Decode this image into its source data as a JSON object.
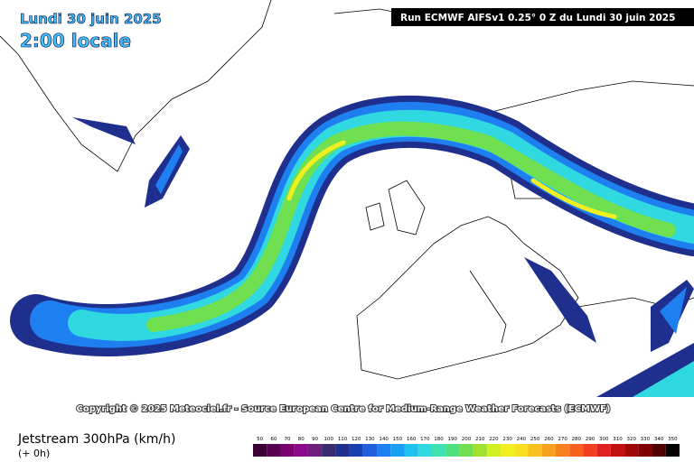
{
  "header": {
    "date": "Lundi 30 juin 2025",
    "time": "2:00 locale",
    "run": "Run ECMWF AIFSv1 0.25° 0 Z du Lundi 30 juin 2025"
  },
  "copyright": "Copyright © 2025 Meteociel.fr - Source European Centre for Medium-Range Weather Forecasts (ECMWF)",
  "legend": {
    "title": "Jetstream 300hPa (km/h)",
    "offset": "(+ 0h)",
    "colorbar": [
      {
        "label": 50,
        "color": "#3b0033"
      },
      {
        "label": 60,
        "color": "#5a0050"
      },
      {
        "label": 70,
        "color": "#7a006e"
      },
      {
        "label": 80,
        "color": "#8a0a8a"
      },
      {
        "label": 90,
        "color": "#6e1f7e"
      },
      {
        "label": 100,
        "color": "#3a2a6e"
      },
      {
        "label": 110,
        "color": "#1f2f8e"
      },
      {
        "label": 120,
        "color": "#1a3fae"
      },
      {
        "label": 130,
        "color": "#1f5fdc"
      },
      {
        "label": 140,
        "color": "#1e7ff0"
      },
      {
        "label": 150,
        "color": "#1aa0f5"
      },
      {
        "label": 160,
        "color": "#20c0f0"
      },
      {
        "label": 170,
        "color": "#30d8e0"
      },
      {
        "label": 180,
        "color": "#40e0b0"
      },
      {
        "label": 190,
        "color": "#50e080"
      },
      {
        "label": 200,
        "color": "#70e050"
      },
      {
        "label": 210,
        "color": "#a0e030"
      },
      {
        "label": 220,
        "color": "#d0f020"
      },
      {
        "label": 230,
        "color": "#f0f020"
      },
      {
        "label": 240,
        "color": "#f8e020"
      },
      {
        "label": 250,
        "color": "#f8c020"
      },
      {
        "label": 260,
        "color": "#f8a020"
      },
      {
        "label": 270,
        "color": "#f88020"
      },
      {
        "label": 280,
        "color": "#f86020"
      },
      {
        "label": 290,
        "color": "#f04020"
      },
      {
        "label": 300,
        "color": "#e02020"
      },
      {
        "label": 310,
        "color": "#c01010"
      },
      {
        "label": 320,
        "color": "#a00808"
      },
      {
        "label": 330,
        "color": "#800000"
      },
      {
        "label": 340,
        "color": "#500000"
      },
      {
        "label": 350,
        "color": "#000000"
      }
    ]
  }
}
